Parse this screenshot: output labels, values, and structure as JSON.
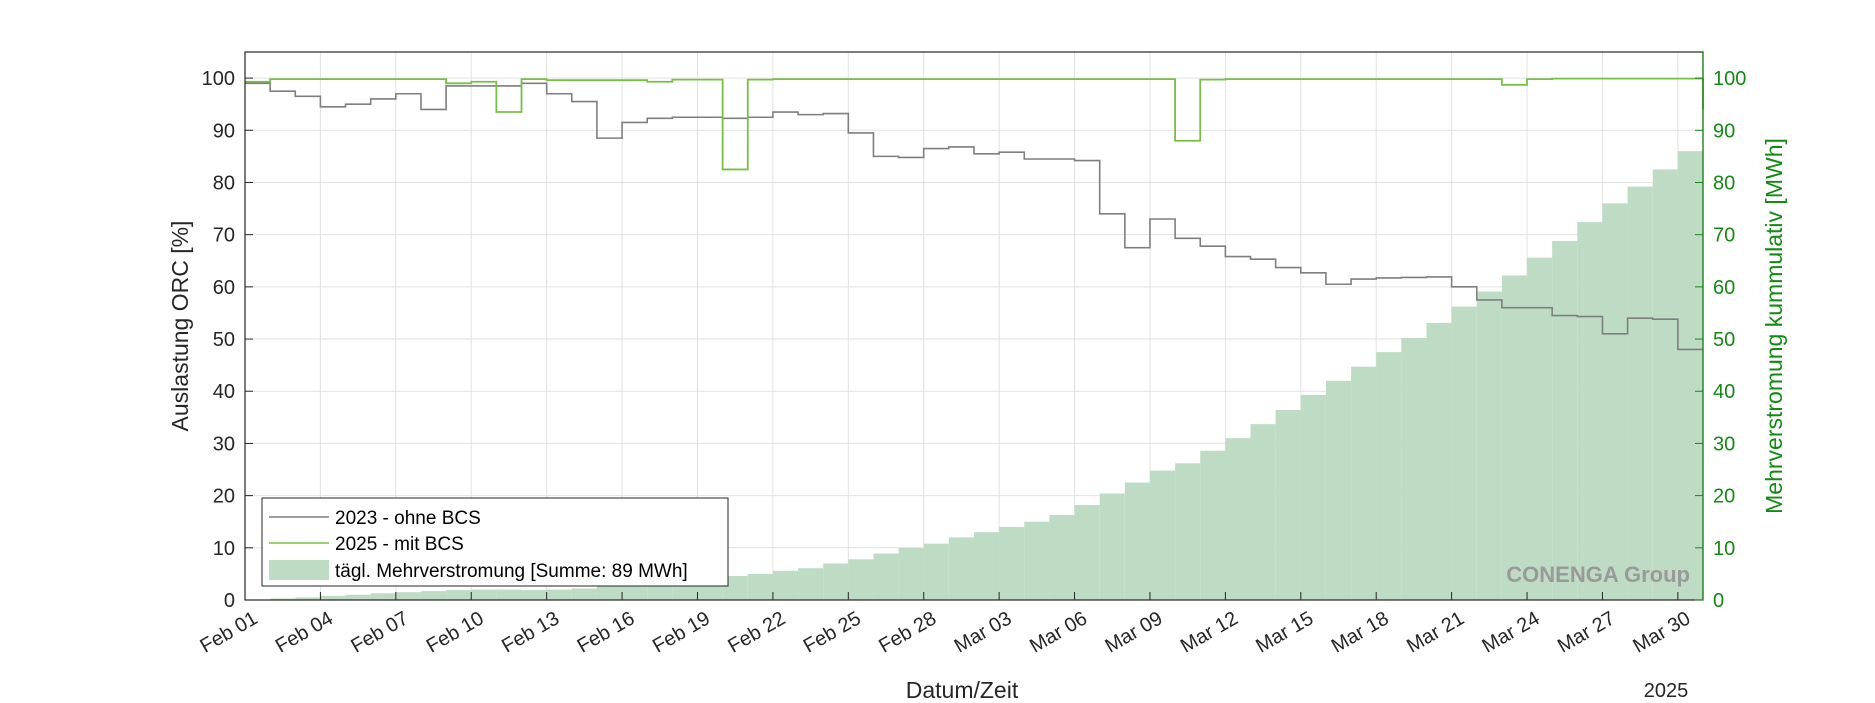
{
  "chart_data": {
    "type": "line",
    "xlabel": "Datum/Zeit",
    "x_year_label": "2025",
    "ylabel_left": "Auslastung ORC [%]",
    "ylabel_right": "Mehrverstromung kummulativ [MWh]",
    "ylim_left": [
      0,
      105
    ],
    "ylim_right": [
      0,
      105
    ],
    "y_ticks": [
      0,
      10,
      20,
      30,
      40,
      50,
      60,
      70,
      80,
      90,
      100
    ],
    "x_start_date": "2025-02-01",
    "x_end_date": "2025-03-31",
    "x_tick_labels": [
      "Feb 01",
      "Feb 04",
      "Feb 07",
      "Feb 10",
      "Feb 13",
      "Feb 16",
      "Feb 19",
      "Feb 22",
      "Feb 25",
      "Feb 28",
      "Mar 03",
      "Mar 06",
      "Mar 09",
      "Mar 12",
      "Mar 15",
      "Mar 18",
      "Mar 21",
      "Mar 24",
      "Mar 27",
      "Mar 30"
    ],
    "grid": true,
    "legend_position": "bottom-left",
    "watermark": "CONENGA Group",
    "colors": {
      "series_2023": "#7f7f7f",
      "series_2025": "#77c043",
      "area_fill": "#bedcc4",
      "right_axis": "#138a13"
    },
    "series": [
      {
        "name": "2023 - ohne BCS",
        "axis": "left",
        "style": "step",
        "x": [
          "2025-02-01",
          "2025-02-02",
          "2025-02-03",
          "2025-02-04",
          "2025-02-05",
          "2025-02-06",
          "2025-02-07",
          "2025-02-08",
          "2025-02-09",
          "2025-02-10",
          "2025-02-11",
          "2025-02-12",
          "2025-02-13",
          "2025-02-14",
          "2025-02-15",
          "2025-02-16",
          "2025-02-17",
          "2025-02-18",
          "2025-02-19",
          "2025-02-20",
          "2025-02-21",
          "2025-02-22",
          "2025-02-23",
          "2025-02-24",
          "2025-02-25",
          "2025-02-26",
          "2025-02-27",
          "2025-02-28",
          "2025-03-01",
          "2025-03-02",
          "2025-03-03",
          "2025-03-04",
          "2025-03-05",
          "2025-03-06",
          "2025-03-07",
          "2025-03-08",
          "2025-03-09",
          "2025-03-10",
          "2025-03-11",
          "2025-03-12",
          "2025-03-13",
          "2025-03-14",
          "2025-03-15",
          "2025-03-16",
          "2025-03-17",
          "2025-03-18",
          "2025-03-19",
          "2025-03-20",
          "2025-03-21",
          "2025-03-22",
          "2025-03-23",
          "2025-03-24",
          "2025-03-25",
          "2025-03-26",
          "2025-03-27",
          "2025-03-28",
          "2025-03-29",
          "2025-03-30"
        ],
        "values": [
          99,
          97.5,
          96.5,
          94.5,
          95,
          96,
          97,
          94,
          98.5,
          98.5,
          98.5,
          99,
          97,
          95.5,
          88.5,
          91.5,
          92.3,
          92.5,
          92.5,
          92.3,
          92.5,
          93.5,
          93,
          93.2,
          89.5,
          85,
          84.8,
          86.5,
          86.8,
          85.5,
          85.8,
          84.5,
          84.5,
          84.2,
          74,
          67.5,
          73,
          69.3,
          67.8,
          65.8,
          65.3,
          63.7,
          62.7,
          60.5,
          61.5,
          61.7,
          61.8,
          61.9,
          60,
          57.5,
          56,
          56,
          54.5,
          54.3,
          51,
          54,
          53.8,
          48
        ]
      },
      {
        "name": "2025 - mit BCS",
        "axis": "left",
        "style": "step",
        "x": [
          "2025-02-01",
          "2025-02-02",
          "2025-02-09",
          "2025-02-10",
          "2025-02-11",
          "2025-02-12",
          "2025-02-13",
          "2025-02-17",
          "2025-02-18",
          "2025-02-20",
          "2025-02-21",
          "2025-02-22",
          "2025-03-10",
          "2025-03-11",
          "2025-03-12",
          "2025-03-23",
          "2025-03-24",
          "2025-03-25",
          "2025-03-31"
        ],
        "values": [
          99.3,
          99.8,
          99,
          99.3,
          93.5,
          99.8,
          99.6,
          99.3,
          99.7,
          82.5,
          99.7,
          99.8,
          88,
          99.7,
          99.8,
          98.7,
          99.8,
          99.9,
          94
        ]
      },
      {
        "name": "tägl. Mehrverstromung [Summe: 89 MWh]",
        "axis": "right",
        "style": "area-step",
        "x": [
          "2025-02-01",
          "2025-02-02",
          "2025-02-03",
          "2025-02-04",
          "2025-02-05",
          "2025-02-06",
          "2025-02-07",
          "2025-02-08",
          "2025-02-09",
          "2025-02-10",
          "2025-02-11",
          "2025-02-12",
          "2025-02-13",
          "2025-02-14",
          "2025-02-15",
          "2025-02-16",
          "2025-02-17",
          "2025-02-18",
          "2025-02-19",
          "2025-02-20",
          "2025-02-21",
          "2025-02-22",
          "2025-02-23",
          "2025-02-24",
          "2025-02-25",
          "2025-02-26",
          "2025-02-27",
          "2025-02-28",
          "2025-03-01",
          "2025-03-02",
          "2025-03-03",
          "2025-03-04",
          "2025-03-05",
          "2025-03-06",
          "2025-03-07",
          "2025-03-08",
          "2025-03-09",
          "2025-03-10",
          "2025-03-11",
          "2025-03-12",
          "2025-03-13",
          "2025-03-14",
          "2025-03-15",
          "2025-03-16",
          "2025-03-17",
          "2025-03-18",
          "2025-03-19",
          "2025-03-20",
          "2025-03-21",
          "2025-03-22",
          "2025-03-23",
          "2025-03-24",
          "2025-03-25",
          "2025-03-26",
          "2025-03-27",
          "2025-03-28",
          "2025-03-29",
          "2025-03-30"
        ],
        "values": [
          0.1,
          0.3,
          0.5,
          0.8,
          1,
          1.3,
          1.5,
          1.7,
          1.9,
          2,
          2,
          1.9,
          2,
          2.2,
          2.6,
          3,
          3.3,
          3.7,
          4.1,
          4.6,
          5,
          5.6,
          6.1,
          7,
          7.8,
          8.9,
          10,
          10.8,
          12,
          13,
          14,
          15,
          16.3,
          18.2,
          20.4,
          22.5,
          24.8,
          26.2,
          28.6,
          31,
          33.7,
          36.4,
          39.3,
          42,
          44.7,
          47.5,
          50.2,
          53.1,
          56.2,
          59.1,
          62.2,
          65.6,
          68.8,
          72.4,
          76,
          79.2,
          82.5,
          86
        ]
      }
    ]
  }
}
